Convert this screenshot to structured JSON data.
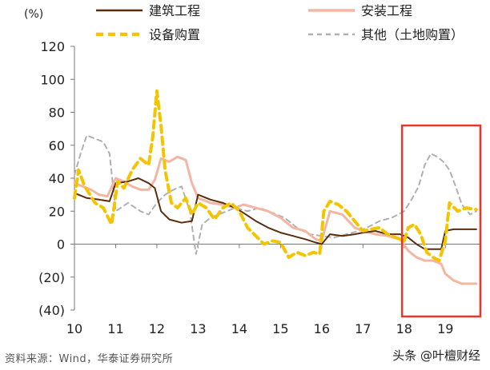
{
  "chart_data": {
    "type": "line",
    "ylabel": "(%)",
    "ylim": [
      -40,
      120
    ],
    "yticks": [
      {
        "value": 120,
        "label": "120"
      },
      {
        "value": 100,
        "label": "100"
      },
      {
        "value": 80,
        "label": "80"
      },
      {
        "value": 60,
        "label": "60"
      },
      {
        "value": 40,
        "label": "40"
      },
      {
        "value": 20,
        "label": "20"
      },
      {
        "value": 0,
        "label": "0"
      },
      {
        "value": -20,
        "label": "(20)"
      },
      {
        "value": -40,
        "label": "(40)"
      }
    ],
    "xlim": [
      2010,
      2019.85
    ],
    "xticks": [
      {
        "value": 2010,
        "label": "10"
      },
      {
        "value": 2011,
        "label": "11"
      },
      {
        "value": 2012,
        "label": "12"
      },
      {
        "value": 2013,
        "label": "13"
      },
      {
        "value": 2014,
        "label": "14"
      },
      {
        "value": 2015,
        "label": "15"
      },
      {
        "value": 2016,
        "label": "16"
      },
      {
        "value": 2017,
        "label": "17"
      },
      {
        "value": 2018,
        "label": "18"
      },
      {
        "value": 2019,
        "label": "19"
      }
    ],
    "legend_position": "top",
    "series": [
      {
        "name": "建筑工程",
        "color": "#5a2d0c",
        "style": "solid",
        "x": [
          2010.0,
          2010.3,
          2010.6,
          2010.85,
          2011.0,
          2011.3,
          2011.55,
          2011.8,
          2011.95,
          2012.1,
          2012.3,
          2012.6,
          2012.85,
          2013.0,
          2013.3,
          2013.6,
          2013.9,
          2014.1,
          2014.4,
          2014.7,
          2015.0,
          2015.3,
          2015.6,
          2015.85,
          2016.0,
          2016.2,
          2016.5,
          2016.8,
          2017.0,
          2017.3,
          2017.6,
          2017.9,
          2018.1,
          2018.3,
          2018.5,
          2018.7,
          2018.9,
          2019.0,
          2019.2,
          2019.5,
          2019.75
        ],
        "y": [
          31,
          28,
          27,
          26,
          37,
          38,
          40,
          37,
          34,
          20,
          15,
          13,
          14,
          30,
          27,
          25,
          22,
          19,
          14,
          10,
          7,
          5,
          3,
          1,
          0,
          6,
          5,
          6,
          7,
          8,
          6,
          6,
          4,
          0,
          -3,
          -3,
          -3,
          8,
          9,
          9,
          9
        ]
      },
      {
        "name": "安装工程",
        "color": "#f3b6a4",
        "style": "solid",
        "x": [
          2010.0,
          2010.2,
          2010.4,
          2010.6,
          2010.8,
          2011.0,
          2011.2,
          2011.4,
          2011.6,
          2011.8,
          2011.95,
          2012.1,
          2012.3,
          2012.5,
          2012.7,
          2012.85,
          2013.0,
          2013.3,
          2013.6,
          2013.9,
          2014.1,
          2014.4,
          2014.7,
          2015.0,
          2015.3,
          2015.6,
          2015.85,
          2016.0,
          2016.2,
          2016.5,
          2016.8,
          2017.0,
          2017.3,
          2017.6,
          2017.9,
          2018.1,
          2018.3,
          2018.5,
          2018.7,
          2018.9,
          2019.0,
          2019.2,
          2019.4,
          2019.6,
          2019.75
        ],
        "y": [
          37,
          35,
          33,
          30,
          29,
          40,
          38,
          35,
          33,
          33,
          39,
          52,
          50,
          53,
          51,
          37,
          28,
          25,
          24,
          22,
          24,
          22,
          20,
          16,
          10,
          8,
          3,
          2,
          20,
          18,
          10,
          8,
          6,
          5,
          3,
          -4,
          -8,
          -10,
          -10,
          -12,
          -18,
          -22,
          -24,
          -24,
          -24
        ]
      },
      {
        "name": "设备购置",
        "color": "#f5c400",
        "style": "dashed",
        "x": [
          2010.0,
          2010.1,
          2010.25,
          2010.5,
          2010.7,
          2010.9,
          2011.05,
          2011.2,
          2011.4,
          2011.6,
          2011.8,
          2011.9,
          2012.0,
          2012.1,
          2012.2,
          2012.35,
          2012.5,
          2012.7,
          2012.85,
          2013.0,
          2013.2,
          2013.4,
          2013.6,
          2013.8,
          2014.0,
          2014.2,
          2014.4,
          2014.6,
          2014.8,
          2015.0,
          2015.2,
          2015.4,
          2015.6,
          2015.8,
          2015.95,
          2016.05,
          2016.2,
          2016.4,
          2016.6,
          2016.8,
          2017.0,
          2017.2,
          2017.4,
          2017.6,
          2017.8,
          2018.0,
          2018.1,
          2018.25,
          2018.4,
          2018.55,
          2018.7,
          2018.85,
          2019.0,
          2019.1,
          2019.3,
          2019.5,
          2019.75
        ],
        "y": [
          28,
          45,
          35,
          25,
          22,
          12,
          38,
          34,
          45,
          52,
          48,
          65,
          93,
          72,
          45,
          25,
          22,
          28,
          18,
          25,
          22,
          15,
          22,
          25,
          20,
          10,
          5,
          0,
          2,
          1,
          -8,
          -5,
          -7,
          -5,
          -6,
          20,
          26,
          24,
          20,
          14,
          8,
          9,
          10,
          6,
          4,
          2,
          10,
          12,
          6,
          -5,
          -8,
          -10,
          2,
          25,
          20,
          22,
          21
        ]
      },
      {
        "name": "其他（土地购置）",
        "color": "#b0b0b0",
        "style": "dashed",
        "x": [
          2010.0,
          2010.15,
          2010.3,
          2010.5,
          2010.7,
          2010.85,
          2011.0,
          2011.3,
          2011.6,
          2011.8,
          2012.0,
          2012.2,
          2012.4,
          2012.6,
          2012.8,
          2012.95,
          2013.1,
          2013.3,
          2013.5,
          2013.7,
          2013.9,
          2014.2,
          2014.5,
          2014.8,
          2015.1,
          2015.4,
          2015.7,
          2016.0,
          2016.3,
          2016.6,
          2016.9,
          2017.1,
          2017.4,
          2017.7,
          2018.0,
          2018.2,
          2018.35,
          2018.5,
          2018.65,
          2018.8,
          2018.95,
          2019.1,
          2019.25,
          2019.4,
          2019.6,
          2019.75
        ],
        "y": [
          42,
          55,
          66,
          64,
          62,
          55,
          20,
          25,
          20,
          18,
          25,
          30,
          33,
          35,
          20,
          -6,
          12,
          16,
          18,
          20,
          22,
          20,
          22,
          19,
          16,
          10,
          6,
          5,
          4,
          6,
          8,
          10,
          14,
          16,
          20,
          28,
          35,
          48,
          55,
          53,
          50,
          45,
          35,
          24,
          18,
          20
        ]
      }
    ],
    "annotation": {
      "type": "highlight-box",
      "x_range": [
        2017.95,
        2019.85
      ],
      "y_range": [
        -40,
        72
      ],
      "color": "#e8372a"
    }
  },
  "source_text": "资料来源：Wind，华泰证券研究所",
  "watermark_text": "头条 @叶檀财经"
}
